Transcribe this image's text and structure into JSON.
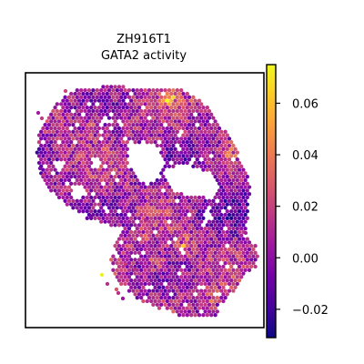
{
  "chart_data": {
    "type": "scatter",
    "title_lines": [
      "ZH916T1",
      "GATA2 activity"
    ],
    "xlabel": "",
    "ylabel": "",
    "colormap": "plasma",
    "colorbar": {
      "range": [
        -0.031,
        0.075
      ],
      "tick_values": [
        -0.02,
        0.0,
        0.02,
        0.04,
        0.06
      ],
      "tick_labels": [
        "−0.02",
        "0.00",
        "0.02",
        "0.04",
        "0.06"
      ]
    },
    "colormap_stops": [
      "#0d0887",
      "#46039f",
      "#7201a8",
      "#9c179e",
      "#bd3786",
      "#d8576b",
      "#ed7953",
      "#fb9f3a",
      "#fdca26",
      "#f0f921"
    ],
    "axes_ticks_visible": false,
    "grid": false
  }
}
